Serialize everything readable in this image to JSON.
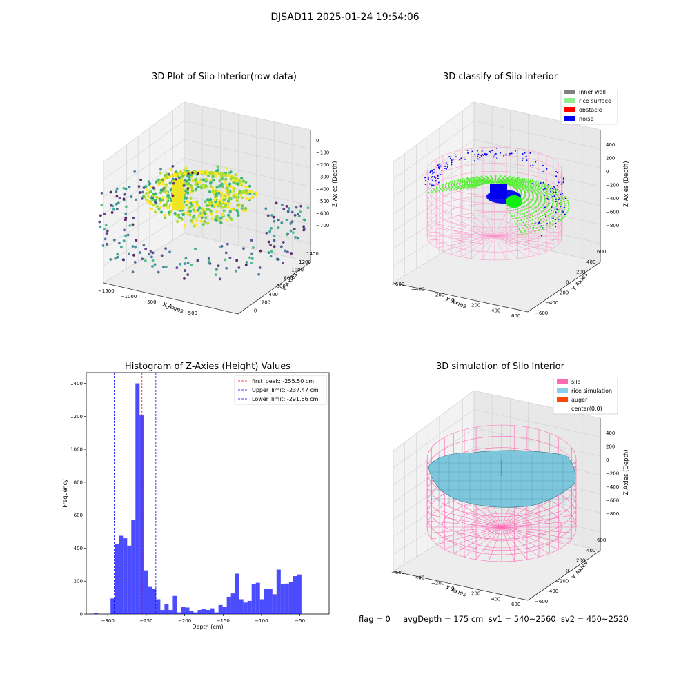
{
  "suptitle": "DJSAD11 2025-01-24 19:54:06",
  "raw_plot": {
    "title": "3D Plot of Silo Interior(row data)",
    "x_label": "X Axies",
    "y_label": "Y Axies",
    "z_label": "Z Axies (Depth)",
    "x_ticks": [
      "−1500",
      "−1000",
      "−500",
      "0",
      "500",
      "1000",
      "1500"
    ],
    "y_ticks": [
      "−200",
      "0",
      "200",
      "400",
      "600",
      "800",
      "1000",
      "1200",
      "1400"
    ],
    "z_ticks": [
      "0",
      "−100",
      "−200",
      "−300",
      "−400",
      "−500",
      "−600",
      "−700"
    ]
  },
  "classify_plot": {
    "title": "3D classify of Silo Interior",
    "x_label": "X Axies",
    "y_label": "Y Axies",
    "z_label": "Z Axies (Depth)",
    "x_ticks": [
      "−600",
      "−400",
      "−200",
      "0",
      "200",
      "400",
      "600"
    ],
    "y_ticks": [
      "−600",
      "−400",
      "−200",
      "0",
      "200",
      "400",
      "600"
    ],
    "z_ticks": [
      "400",
      "200",
      "0",
      "−200",
      "−400",
      "−600",
      "−800"
    ],
    "legend": [
      {
        "label": "inner wall",
        "color": "#808080"
      },
      {
        "label": "rice surface",
        "color": "#90ee90"
      },
      {
        "label": "obstacle",
        "color": "#ff0000"
      },
      {
        "label": "noise",
        "color": "#0000ff"
      }
    ]
  },
  "sim_plot": {
    "title": "3D simulation of Silo Interior",
    "x_label": "X Axies",
    "y_label": "Y Axies",
    "z_label": "Z Axies (Depth)",
    "x_ticks": [
      "−600",
      "−400",
      "−200",
      "0",
      "200",
      "400",
      "600"
    ],
    "y_ticks": [
      "−600",
      "−400",
      "−200",
      "0",
      "200",
      "400",
      "600"
    ],
    "z_ticks": [
      "400",
      "200",
      "0",
      "−200",
      "−400",
      "−600",
      "−800"
    ],
    "legend": [
      {
        "label": "silo",
        "color": "#ff69b4"
      },
      {
        "label": "rice simulation",
        "color": "#87ceeb"
      },
      {
        "label": "auger",
        "color": "#ff4500"
      },
      {
        "label": "center(0,0)",
        "color": "#ffffff"
      }
    ]
  },
  "chart_data": {
    "type": "bar",
    "title": "Histogram of Z-Axies (Height) Values",
    "xlabel": "Depth (cm)",
    "ylabel": "Frequency",
    "xlim": [
      -328,
      -12
    ],
    "ylim": [
      0,
      1465
    ],
    "x_ticks": [
      -300,
      -250,
      -200,
      -150,
      -100,
      -50
    ],
    "y_ticks": [
      0,
      200,
      400,
      600,
      800,
      1000,
      1200,
      1400
    ],
    "bar_color": "#0000ff",
    "bin_width": 5.4,
    "bin_start": -318,
    "values": [
      5,
      0,
      0,
      0,
      95,
      425,
      475,
      460,
      415,
      570,
      1400,
      1205,
      265,
      165,
      155,
      90,
      25,
      60,
      25,
      110,
      10,
      45,
      40,
      20,
      10,
      25,
      30,
      25,
      35,
      10,
      55,
      45,
      105,
      125,
      245,
      90,
      70,
      80,
      180,
      190,
      90,
      155,
      155,
      120,
      270,
      180,
      185,
      195,
      230,
      240
    ],
    "lines": [
      {
        "label": "first_peak: -255.50 cm",
        "x": -255.5,
        "color": "#ff0000"
      },
      {
        "label": "Upper_limit: -237.47 cm",
        "x": -237.47,
        "color": "#0000ff"
      },
      {
        "label": "Lower_limit: -291.56 cm",
        "x": -291.56,
        "color": "#0000ff"
      }
    ]
  },
  "stats": {
    "text": "flag = 0     avgDepth = 175 cm  sv1 = 540~2560  sv2 = 450~2520"
  }
}
